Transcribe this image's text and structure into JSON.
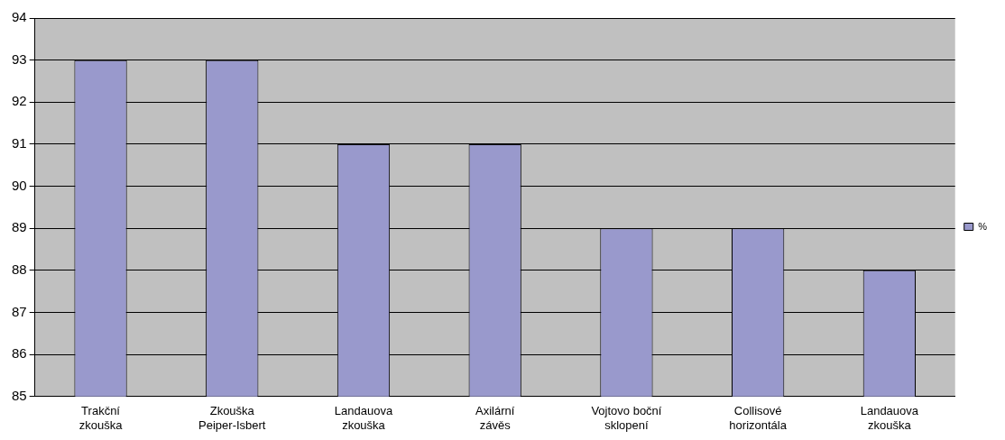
{
  "chart_data": {
    "type": "bar",
    "categories": [
      "Trakční zkouška",
      "Zkouška Peiper-Isbert",
      "Landauova zkouška",
      "Axilární závěs",
      "Vojtovo boční sklopení",
      "Collisové horizontála",
      "Landauova zkouška"
    ],
    "series": [
      {
        "name": "%",
        "color": "#9999cc",
        "values": [
          93,
          93,
          91,
          91,
          89,
          89,
          88
        ]
      }
    ],
    "ylim": [
      85,
      94
    ],
    "yticks": [
      85,
      86,
      87,
      88,
      89,
      90,
      91,
      92,
      93,
      94
    ],
    "grid": "y",
    "legend": "right"
  }
}
